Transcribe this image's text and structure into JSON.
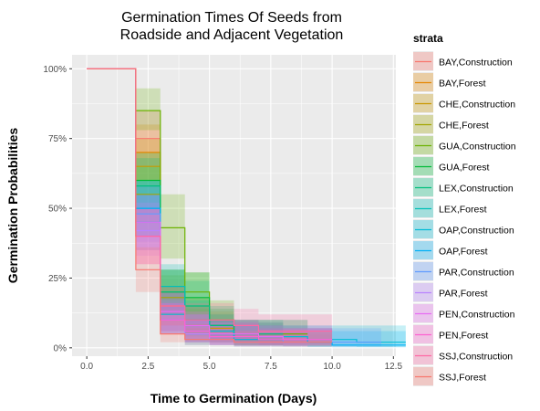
{
  "chart_data": {
    "type": "line",
    "title_lines": [
      "Germination Times Of Seeds from",
      "Roadside and Adjacent Vegetation"
    ],
    "xlabel": "Time to Germination (Days)",
    "ylabel": "Germination Probabilities",
    "xlim": [
      -0.6,
      12.6
    ],
    "ylim": [
      -0.03,
      1.05
    ],
    "x_ticks": [
      0,
      2.5,
      5,
      7.5,
      10,
      12.5
    ],
    "x_tick_labels": [
      "0.0",
      "2.5",
      "5.0",
      "7.5",
      "10.0",
      "12.5"
    ],
    "y_ticks": [
      0,
      0.25,
      0.5,
      0.75,
      1
    ],
    "y_tick_labels": [
      "0%",
      "25%",
      "50%",
      "75%",
      "100%"
    ],
    "grid": true,
    "legend": {
      "title": "strata",
      "position": "right"
    },
    "series": [
      {
        "name": "BAY,Construction",
        "color": "#F8766D",
        "x": [
          0,
          2,
          3,
          4,
          6,
          8,
          9
        ],
        "y": [
          1,
          0.75,
          0.12,
          0.05,
          0.03,
          0.02,
          0.02
        ],
        "lower": [
          1,
          0.65,
          0.06,
          0.02,
          0.01,
          0.005,
          0.005
        ],
        "upper": [
          1,
          0.85,
          0.2,
          0.1,
          0.07,
          0.05,
          0.05
        ]
      },
      {
        "name": "BAY,Forest",
        "color": "#E58700",
        "x": [
          0,
          2,
          3,
          4,
          5,
          7,
          9
        ],
        "y": [
          1,
          0.7,
          0.15,
          0.08,
          0.05,
          0.03,
          0.03
        ],
        "lower": [
          1,
          0.6,
          0.08,
          0.04,
          0.02,
          0.01,
          0.01
        ],
        "upper": [
          1,
          0.8,
          0.22,
          0.14,
          0.1,
          0.07,
          0.07
        ]
      },
      {
        "name": "CHE,Construction",
        "color": "#C99800",
        "x": [
          0,
          2,
          3,
          4,
          5,
          6,
          7
        ],
        "y": [
          1,
          0.65,
          0.2,
          0.1,
          0.07,
          0.04,
          0.04
        ],
        "lower": [
          1,
          0.55,
          0.12,
          0.05,
          0.03,
          0.01,
          0.01
        ],
        "upper": [
          1,
          0.75,
          0.28,
          0.18,
          0.13,
          0.09,
          0.09
        ]
      },
      {
        "name": "CHE,Forest",
        "color": "#A3A500",
        "x": [
          0,
          2,
          3,
          4,
          5,
          6,
          8
        ],
        "y": [
          1,
          0.55,
          0.18,
          0.08,
          0.06,
          0.03,
          0.03
        ],
        "lower": [
          1,
          0.45,
          0.1,
          0.03,
          0.02,
          0.01,
          0.01
        ],
        "upper": [
          1,
          0.65,
          0.26,
          0.15,
          0.12,
          0.08,
          0.08
        ]
      },
      {
        "name": "GUA,Construction",
        "color": "#6BB100",
        "x": [
          0,
          2,
          3,
          4,
          5,
          6,
          8
        ],
        "y": [
          1,
          0.85,
          0.43,
          0.2,
          0.1,
          0.05,
          0.05
        ],
        "lower": [
          1,
          0.78,
          0.32,
          0.12,
          0.05,
          0.02,
          0.02
        ],
        "upper": [
          1,
          0.93,
          0.55,
          0.27,
          0.17,
          0.1,
          0.1
        ]
      },
      {
        "name": "GUA,Forest",
        "color": "#00BA38",
        "x": [
          0,
          2,
          3,
          4,
          5,
          6,
          7
        ],
        "y": [
          1,
          0.6,
          0.2,
          0.18,
          0.08,
          0.04,
          0.04
        ],
        "lower": [
          1,
          0.5,
          0.12,
          0.1,
          0.04,
          0.01,
          0.01
        ],
        "upper": [
          1,
          0.7,
          0.28,
          0.27,
          0.14,
          0.09,
          0.09
        ]
      },
      {
        "name": "LEX,Construction",
        "color": "#00BF7D",
        "x": [
          0,
          2,
          3,
          4,
          5,
          6,
          7
        ],
        "y": [
          1,
          0.58,
          0.2,
          0.15,
          0.08,
          0.05,
          0.05
        ],
        "lower": [
          1,
          0.48,
          0.12,
          0.08,
          0.03,
          0.02,
          0.02
        ],
        "upper": [
          1,
          0.68,
          0.28,
          0.24,
          0.15,
          0.1,
          0.1
        ]
      },
      {
        "name": "LEX,Forest",
        "color": "#00C0B8",
        "x": [
          0,
          2,
          3,
          4,
          5,
          7,
          9
        ],
        "y": [
          1,
          0.5,
          0.22,
          0.1,
          0.05,
          0.03,
          0.03
        ],
        "lower": [
          1,
          0.4,
          0.14,
          0.05,
          0.02,
          0.01,
          0.01
        ],
        "upper": [
          1,
          0.6,
          0.3,
          0.17,
          0.1,
          0.07,
          0.07
        ]
      },
      {
        "name": "OAP,Construction",
        "color": "#00BCD8",
        "x": [
          0,
          2,
          3,
          4,
          6,
          9,
          11,
          12
        ],
        "y": [
          1,
          0.45,
          0.12,
          0.06,
          0.04,
          0.03,
          0.02,
          0.02
        ],
        "lower": [
          1,
          0.35,
          0.06,
          0.02,
          0.01,
          0.005,
          0.003,
          0.003
        ],
        "upper": [
          1,
          0.55,
          0.2,
          0.12,
          0.1,
          0.08,
          0.08,
          0.08
        ]
      },
      {
        "name": "OAP,Forest",
        "color": "#00B0F6",
        "x": [
          0,
          2,
          3,
          4,
          6,
          9,
          10,
          12
        ],
        "y": [
          1,
          0.5,
          0.1,
          0.05,
          0.03,
          0.02,
          0.01,
          0.01
        ],
        "lower": [
          1,
          0.4,
          0.05,
          0.01,
          0.005,
          0.003,
          0.002,
          0.002
        ],
        "upper": [
          1,
          0.6,
          0.16,
          0.1,
          0.08,
          0.07,
          0.06,
          0.06
        ]
      },
      {
        "name": "PAR,Construction",
        "color": "#619CFF",
        "x": [
          0,
          2,
          3,
          4,
          5,
          8,
          10,
          11
        ],
        "y": [
          1,
          0.48,
          0.1,
          0.06,
          0.04,
          0.02,
          0.02,
          0.02
        ],
        "lower": [
          1,
          0.38,
          0.05,
          0.02,
          0.01,
          0.005,
          0.005,
          0.005
        ],
        "upper": [
          1,
          0.58,
          0.17,
          0.12,
          0.09,
          0.08,
          0.07,
          0.07
        ]
      },
      {
        "name": "PAR,Forest",
        "color": "#B983FF",
        "x": [
          0,
          2,
          3,
          4,
          5,
          6,
          8
        ],
        "y": [
          1,
          0.42,
          0.1,
          0.05,
          0.03,
          0.02,
          0.02
        ],
        "lower": [
          1,
          0.33,
          0.05,
          0.02,
          0.01,
          0.005,
          0.005
        ],
        "upper": [
          1,
          0.52,
          0.16,
          0.1,
          0.07,
          0.06,
          0.06
        ]
      },
      {
        "name": "PEN,Construction",
        "color": "#E76BF3",
        "x": [
          0,
          2,
          3,
          4,
          5,
          7,
          8,
          9
        ],
        "y": [
          1,
          0.45,
          0.13,
          0.08,
          0.05,
          0.04,
          0.03,
          0.03
        ],
        "lower": [
          1,
          0.35,
          0.06,
          0.03,
          0.02,
          0.01,
          0.01,
          0.01
        ],
        "upper": [
          1,
          0.55,
          0.2,
          0.13,
          0.1,
          0.08,
          0.07,
          0.07
        ]
      },
      {
        "name": "PEN,Forest",
        "color": "#FD61D1",
        "x": [
          0,
          2,
          3,
          4,
          5,
          7,
          9
        ],
        "y": [
          1,
          0.4,
          0.1,
          0.06,
          0.04,
          0.03,
          0.03
        ],
        "lower": [
          1,
          0.3,
          0.05,
          0.02,
          0.01,
          0.01,
          0.01
        ],
        "upper": [
          1,
          0.5,
          0.16,
          0.12,
          0.09,
          0.07,
          0.07
        ]
      },
      {
        "name": "SSJ,Construction",
        "color": "#FF67A4",
        "x": [
          0,
          2,
          3,
          4,
          6,
          7,
          8,
          9
        ],
        "y": [
          1,
          0.4,
          0.15,
          0.1,
          0.08,
          0.06,
          0.06,
          0.06
        ],
        "lower": [
          1,
          0.3,
          0.08,
          0.05,
          0.03,
          0.02,
          0.02,
          0.02
        ],
        "upper": [
          1,
          0.5,
          0.22,
          0.16,
          0.14,
          0.12,
          0.12,
          0.12
        ]
      },
      {
        "name": "SSJ,Forest",
        "color": "#F8766D",
        "x": [
          0,
          2,
          3,
          4,
          6,
          7,
          9
        ],
        "y": [
          1,
          0.28,
          0.05,
          0.03,
          0.02,
          0.02,
          0.02
        ],
        "lower": [
          1,
          0.2,
          0.02,
          0.01,
          0.005,
          0.005,
          0.005
        ],
        "upper": [
          1,
          0.36,
          0.1,
          0.07,
          0.06,
          0.06,
          0.06
        ]
      }
    ]
  }
}
